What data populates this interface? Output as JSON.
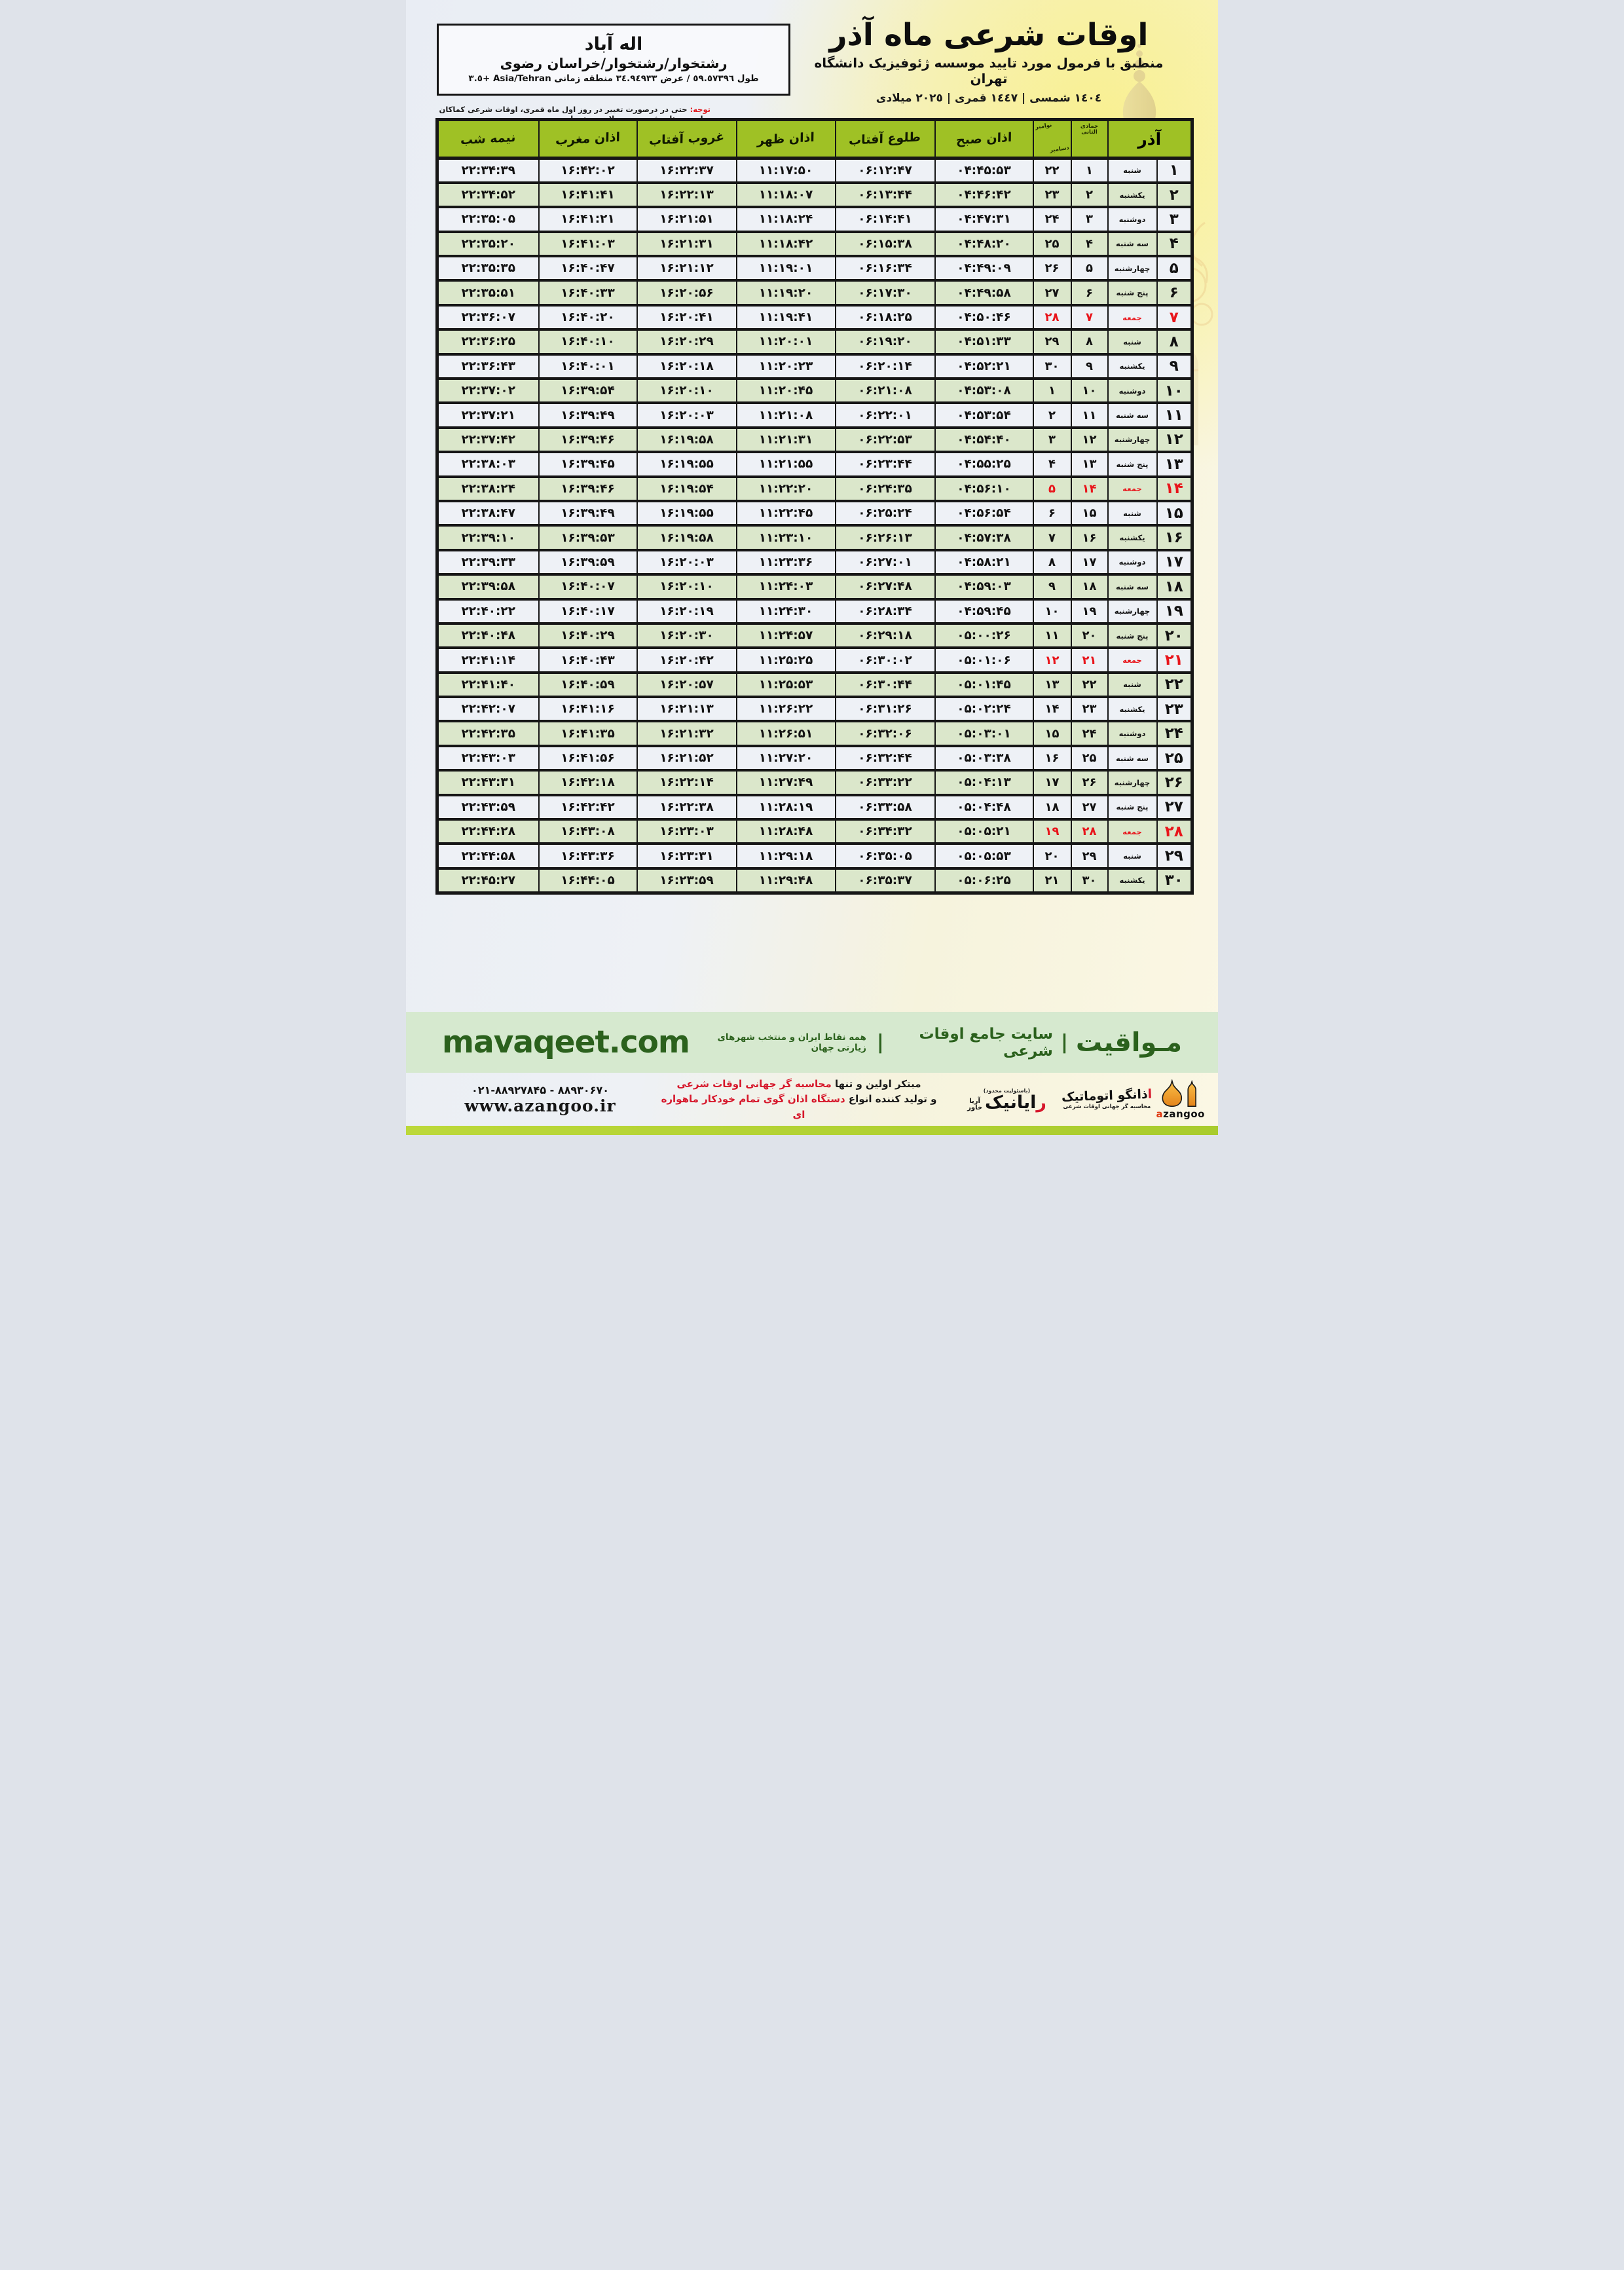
{
  "header": {
    "title": "اوقات شرعی ماه آذر",
    "subtitle": "منطبق با فرمول مورد تایید موسسه ژئوفیزیک دانشگاه تهران",
    "calendars": "١٤٠٤ شمسی | ١٤٤٧ قمری | ٢٠٢٥ میلادی"
  },
  "location": {
    "city": "اله آباد",
    "region": "رشتخوار/رشتخوار/خراسان رضوی",
    "coords": "طول ٥٩.٥٧٣٩٦ / عرض ٣٤.٩٤٩٣٣ منطقه زمانی Asia/Tehran +٣.٥"
  },
  "notice": {
    "label": "توجه:",
    "text": " حتی در درصورت تغییر در روز اول ماه قمری، اوقات شرعی کماکان برای روزهای شمسی و میلادی معتبر است."
  },
  "table": {
    "month": "آذر",
    "lunar_month": "جمادی الثانی",
    "greg_top": "نوامبر",
    "greg_bottom": "دسامبر",
    "cols": [
      "اذان صبح",
      "طلوع آفتاب",
      "اذان ظهر",
      "غروب آفتاب",
      "اذان مغرب",
      "نیمه شب"
    ],
    "rows": [
      {
        "d": "۱",
        "w": "شنبه",
        "l": "۱",
        "g": "۲۲",
        "fri": false,
        "t": [
          "۰۴:۴۵:۵۳",
          "۰۶:۱۲:۴۷",
          "۱۱:۱۷:۵۰",
          "۱۶:۲۲:۳۷",
          "۱۶:۴۲:۰۲",
          "۲۲:۳۴:۳۹"
        ]
      },
      {
        "d": "۲",
        "w": "یکشنبه",
        "l": "۲",
        "g": "۲۳",
        "fri": false,
        "t": [
          "۰۴:۴۶:۴۲",
          "۰۶:۱۳:۴۴",
          "۱۱:۱۸:۰۷",
          "۱۶:۲۲:۱۳",
          "۱۶:۴۱:۴۱",
          "۲۲:۳۴:۵۲"
        ]
      },
      {
        "d": "۳",
        "w": "دوشنبه",
        "l": "۳",
        "g": "۲۴",
        "fri": false,
        "t": [
          "۰۴:۴۷:۳۱",
          "۰۶:۱۴:۴۱",
          "۱۱:۱۸:۲۴",
          "۱۶:۲۱:۵۱",
          "۱۶:۴۱:۲۱",
          "۲۲:۳۵:۰۵"
        ]
      },
      {
        "d": "۴",
        "w": "سه شنبه",
        "l": "۴",
        "g": "۲۵",
        "fri": false,
        "t": [
          "۰۴:۴۸:۲۰",
          "۰۶:۱۵:۳۸",
          "۱۱:۱۸:۴۲",
          "۱۶:۲۱:۳۱",
          "۱۶:۴۱:۰۳",
          "۲۲:۳۵:۲۰"
        ]
      },
      {
        "d": "۵",
        "w": "چهارشنبه",
        "l": "۵",
        "g": "۲۶",
        "fri": false,
        "t": [
          "۰۴:۴۹:۰۹",
          "۰۶:۱۶:۳۴",
          "۱۱:۱۹:۰۱",
          "۱۶:۲۱:۱۲",
          "۱۶:۴۰:۴۷",
          "۲۲:۳۵:۳۵"
        ]
      },
      {
        "d": "۶",
        "w": "پنج شنبه",
        "l": "۶",
        "g": "۲۷",
        "fri": false,
        "t": [
          "۰۴:۴۹:۵۸",
          "۰۶:۱۷:۳۰",
          "۱۱:۱۹:۲۰",
          "۱۶:۲۰:۵۶",
          "۱۶:۴۰:۳۳",
          "۲۲:۳۵:۵۱"
        ]
      },
      {
        "d": "۷",
        "w": "جمعه",
        "l": "۷",
        "g": "۲۸",
        "fri": true,
        "t": [
          "۰۴:۵۰:۴۶",
          "۰۶:۱۸:۲۵",
          "۱۱:۱۹:۴۱",
          "۱۶:۲۰:۴۱",
          "۱۶:۴۰:۲۰",
          "۲۲:۳۶:۰۷"
        ]
      },
      {
        "d": "۸",
        "w": "شنبه",
        "l": "۸",
        "g": "۲۹",
        "fri": false,
        "t": [
          "۰۴:۵۱:۳۳",
          "۰۶:۱۹:۲۰",
          "۱۱:۲۰:۰۱",
          "۱۶:۲۰:۲۹",
          "۱۶:۴۰:۱۰",
          "۲۲:۳۶:۲۵"
        ]
      },
      {
        "d": "۹",
        "w": "یکشنبه",
        "l": "۹",
        "g": "۳۰",
        "fri": false,
        "t": [
          "۰۴:۵۲:۲۱",
          "۰۶:۲۰:۱۴",
          "۱۱:۲۰:۲۳",
          "۱۶:۲۰:۱۸",
          "۱۶:۴۰:۰۱",
          "۲۲:۳۶:۴۳"
        ]
      },
      {
        "d": "۱۰",
        "w": "دوشنبه",
        "l": "۱۰",
        "g": "۱",
        "fri": false,
        "t": [
          "۰۴:۵۳:۰۸",
          "۰۶:۲۱:۰۸",
          "۱۱:۲۰:۴۵",
          "۱۶:۲۰:۱۰",
          "۱۶:۳۹:۵۴",
          "۲۲:۳۷:۰۲"
        ]
      },
      {
        "d": "۱۱",
        "w": "سه شنبه",
        "l": "۱۱",
        "g": "۲",
        "fri": false,
        "t": [
          "۰۴:۵۳:۵۴",
          "۰۶:۲۲:۰۱",
          "۱۱:۲۱:۰۸",
          "۱۶:۲۰:۰۳",
          "۱۶:۳۹:۴۹",
          "۲۲:۳۷:۲۱"
        ]
      },
      {
        "d": "۱۲",
        "w": "چهارشنبه",
        "l": "۱۲",
        "g": "۳",
        "fri": false,
        "t": [
          "۰۴:۵۴:۴۰",
          "۰۶:۲۲:۵۳",
          "۱۱:۲۱:۳۱",
          "۱۶:۱۹:۵۸",
          "۱۶:۳۹:۴۶",
          "۲۲:۳۷:۴۲"
        ]
      },
      {
        "d": "۱۳",
        "w": "پنج شنبه",
        "l": "۱۳",
        "g": "۴",
        "fri": false,
        "t": [
          "۰۴:۵۵:۲۵",
          "۰۶:۲۳:۴۴",
          "۱۱:۲۱:۵۵",
          "۱۶:۱۹:۵۵",
          "۱۶:۳۹:۴۵",
          "۲۲:۳۸:۰۳"
        ]
      },
      {
        "d": "۱۴",
        "w": "جمعه",
        "l": "۱۴",
        "g": "۵",
        "fri": true,
        "t": [
          "۰۴:۵۶:۱۰",
          "۰۶:۲۴:۳۵",
          "۱۱:۲۲:۲۰",
          "۱۶:۱۹:۵۴",
          "۱۶:۳۹:۴۶",
          "۲۲:۳۸:۲۴"
        ]
      },
      {
        "d": "۱۵",
        "w": "شنبه",
        "l": "۱۵",
        "g": "۶",
        "fri": false,
        "t": [
          "۰۴:۵۶:۵۴",
          "۰۶:۲۵:۲۴",
          "۱۱:۲۲:۴۵",
          "۱۶:۱۹:۵۵",
          "۱۶:۳۹:۴۹",
          "۲۲:۳۸:۴۷"
        ]
      },
      {
        "d": "۱۶",
        "w": "یکشنبه",
        "l": "۱۶",
        "g": "۷",
        "fri": false,
        "t": [
          "۰۴:۵۷:۳۸",
          "۰۶:۲۶:۱۳",
          "۱۱:۲۳:۱۰",
          "۱۶:۱۹:۵۸",
          "۱۶:۳۹:۵۳",
          "۲۲:۳۹:۱۰"
        ]
      },
      {
        "d": "۱۷",
        "w": "دوشنبه",
        "l": "۱۷",
        "g": "۸",
        "fri": false,
        "t": [
          "۰۴:۵۸:۲۱",
          "۰۶:۲۷:۰۱",
          "۱۱:۲۳:۳۶",
          "۱۶:۲۰:۰۳",
          "۱۶:۳۹:۵۹",
          "۲۲:۳۹:۳۳"
        ]
      },
      {
        "d": "۱۸",
        "w": "سه شنبه",
        "l": "۱۸",
        "g": "۹",
        "fri": false,
        "t": [
          "۰۴:۵۹:۰۳",
          "۰۶:۲۷:۴۸",
          "۱۱:۲۴:۰۳",
          "۱۶:۲۰:۱۰",
          "۱۶:۴۰:۰۷",
          "۲۲:۳۹:۵۸"
        ]
      },
      {
        "d": "۱۹",
        "w": "چهارشنبه",
        "l": "۱۹",
        "g": "۱۰",
        "fri": false,
        "t": [
          "۰۴:۵۹:۴۵",
          "۰۶:۲۸:۳۴",
          "۱۱:۲۴:۳۰",
          "۱۶:۲۰:۱۹",
          "۱۶:۴۰:۱۷",
          "۲۲:۴۰:۲۲"
        ]
      },
      {
        "d": "۲۰",
        "w": "پنج شنبه",
        "l": "۲۰",
        "g": "۱۱",
        "fri": false,
        "t": [
          "۰۵:۰۰:۲۶",
          "۰۶:۲۹:۱۸",
          "۱۱:۲۴:۵۷",
          "۱۶:۲۰:۳۰",
          "۱۶:۴۰:۲۹",
          "۲۲:۴۰:۴۸"
        ]
      },
      {
        "d": "۲۱",
        "w": "جمعه",
        "l": "۲۱",
        "g": "۱۲",
        "fri": true,
        "t": [
          "۰۵:۰۱:۰۶",
          "۰۶:۳۰:۰۲",
          "۱۱:۲۵:۲۵",
          "۱۶:۲۰:۴۲",
          "۱۶:۴۰:۴۳",
          "۲۲:۴۱:۱۴"
        ]
      },
      {
        "d": "۲۲",
        "w": "شنبه",
        "l": "۲۲",
        "g": "۱۳",
        "fri": false,
        "t": [
          "۰۵:۰۱:۴۵",
          "۰۶:۳۰:۴۴",
          "۱۱:۲۵:۵۳",
          "۱۶:۲۰:۵۷",
          "۱۶:۴۰:۵۹",
          "۲۲:۴۱:۴۰"
        ]
      },
      {
        "d": "۲۳",
        "w": "یکشنبه",
        "l": "۲۳",
        "g": "۱۴",
        "fri": false,
        "t": [
          "۰۵:۰۲:۲۴",
          "۰۶:۳۱:۲۶",
          "۱۱:۲۶:۲۲",
          "۱۶:۲۱:۱۳",
          "۱۶:۴۱:۱۶",
          "۲۲:۴۲:۰۷"
        ]
      },
      {
        "d": "۲۴",
        "w": "دوشنبه",
        "l": "۲۴",
        "g": "۱۵",
        "fri": false,
        "t": [
          "۰۵:۰۳:۰۱",
          "۰۶:۳۲:۰۶",
          "۱۱:۲۶:۵۱",
          "۱۶:۲۱:۳۲",
          "۱۶:۴۱:۳۵",
          "۲۲:۴۲:۳۵"
        ]
      },
      {
        "d": "۲۵",
        "w": "سه شنبه",
        "l": "۲۵",
        "g": "۱۶",
        "fri": false,
        "t": [
          "۰۵:۰۳:۳۸",
          "۰۶:۳۲:۴۴",
          "۱۱:۲۷:۲۰",
          "۱۶:۲۱:۵۲",
          "۱۶:۴۱:۵۶",
          "۲۲:۴۳:۰۳"
        ]
      },
      {
        "d": "۲۶",
        "w": "چهارشنبه",
        "l": "۲۶",
        "g": "۱۷",
        "fri": false,
        "t": [
          "۰۵:۰۴:۱۳",
          "۰۶:۳۳:۲۲",
          "۱۱:۲۷:۴۹",
          "۱۶:۲۲:۱۴",
          "۱۶:۴۲:۱۸",
          "۲۲:۴۳:۳۱"
        ]
      },
      {
        "d": "۲۷",
        "w": "پنج شنبه",
        "l": "۲۷",
        "g": "۱۸",
        "fri": false,
        "t": [
          "۰۵:۰۴:۴۸",
          "۰۶:۳۳:۵۸",
          "۱۱:۲۸:۱۹",
          "۱۶:۲۲:۳۸",
          "۱۶:۴۲:۴۲",
          "۲۲:۴۳:۵۹"
        ]
      },
      {
        "d": "۲۸",
        "w": "جمعه",
        "l": "۲۸",
        "g": "۱۹",
        "fri": true,
        "t": [
          "۰۵:۰۵:۲۱",
          "۰۶:۳۴:۳۲",
          "۱۱:۲۸:۴۸",
          "۱۶:۲۳:۰۳",
          "۱۶:۴۳:۰۸",
          "۲۲:۴۴:۲۸"
        ]
      },
      {
        "d": "۲۹",
        "w": "شنبه",
        "l": "۲۹",
        "g": "۲۰",
        "fri": false,
        "t": [
          "۰۵:۰۵:۵۳",
          "۰۶:۳۵:۰۵",
          "۱۱:۲۹:۱۸",
          "۱۶:۲۳:۳۱",
          "۱۶:۴۳:۳۶",
          "۲۲:۴۴:۵۸"
        ]
      },
      {
        "d": "۳۰",
        "w": "یکشنبه",
        "l": "۳۰",
        "g": "۲۱",
        "fri": false,
        "t": [
          "۰۵:۰۶:۲۵",
          "۰۶:۳۵:۳۷",
          "۱۱:۲۹:۴۸",
          "۱۶:۲۳:۵۹",
          "۱۶:۴۴:۰۵",
          "۲۲:۴۵:۲۷"
        ]
      }
    ]
  },
  "footer": {
    "brand": "مـواقیت",
    "sep": "|",
    "site_fa": "سایت جامع اوقات شرعی",
    "tagline": "همه نقاط ایران و منتخب شهرهای زیارتی جهان",
    "domain": "mavaqeet.com"
  },
  "bottom": {
    "phone": "۰۲۱-۸۸۹۲۷۸۴۵ - ۸۸۹۳۰۶۷۰",
    "site": "www.azangoo.ir",
    "line1_pre": "مبتکر اولین و تنها ",
    "line1_red": "محاسبه گر جهانی اوقات شرعی",
    "line2_pre": "و تولید کننده انواع ",
    "line2_red": "دستگاه اذان گوی تمام خودکار ماهواره ای",
    "rayanik_note": "(باسئولیت محدود)",
    "rayanik_first": "ر",
    "rayanik_rest": "ایانیک",
    "rayanik_sub_top": "آریا",
    "rayanik_sub_bottom": "خاور",
    "azangoo_fa_first": "ا",
    "azangoo_fa_rest": "ذانگو اتوماتیک",
    "azangoo_tag": "محاسبه گر جهانی اوقات شرعی",
    "azangoo_latin_first": "a",
    "azangoo_latin_rest": "zangoo"
  },
  "colors": {
    "header_green": "#9fc125",
    "row_green": "#dbe7cb",
    "row_gray": "#eef1f6",
    "friday_red": "#e8151b",
    "footer_green_bg": "#d6e9cf",
    "footer_green_text": "#2b611d",
    "logo_orange": "#f0941f",
    "bottom_bar_green": "#b2d235"
  }
}
